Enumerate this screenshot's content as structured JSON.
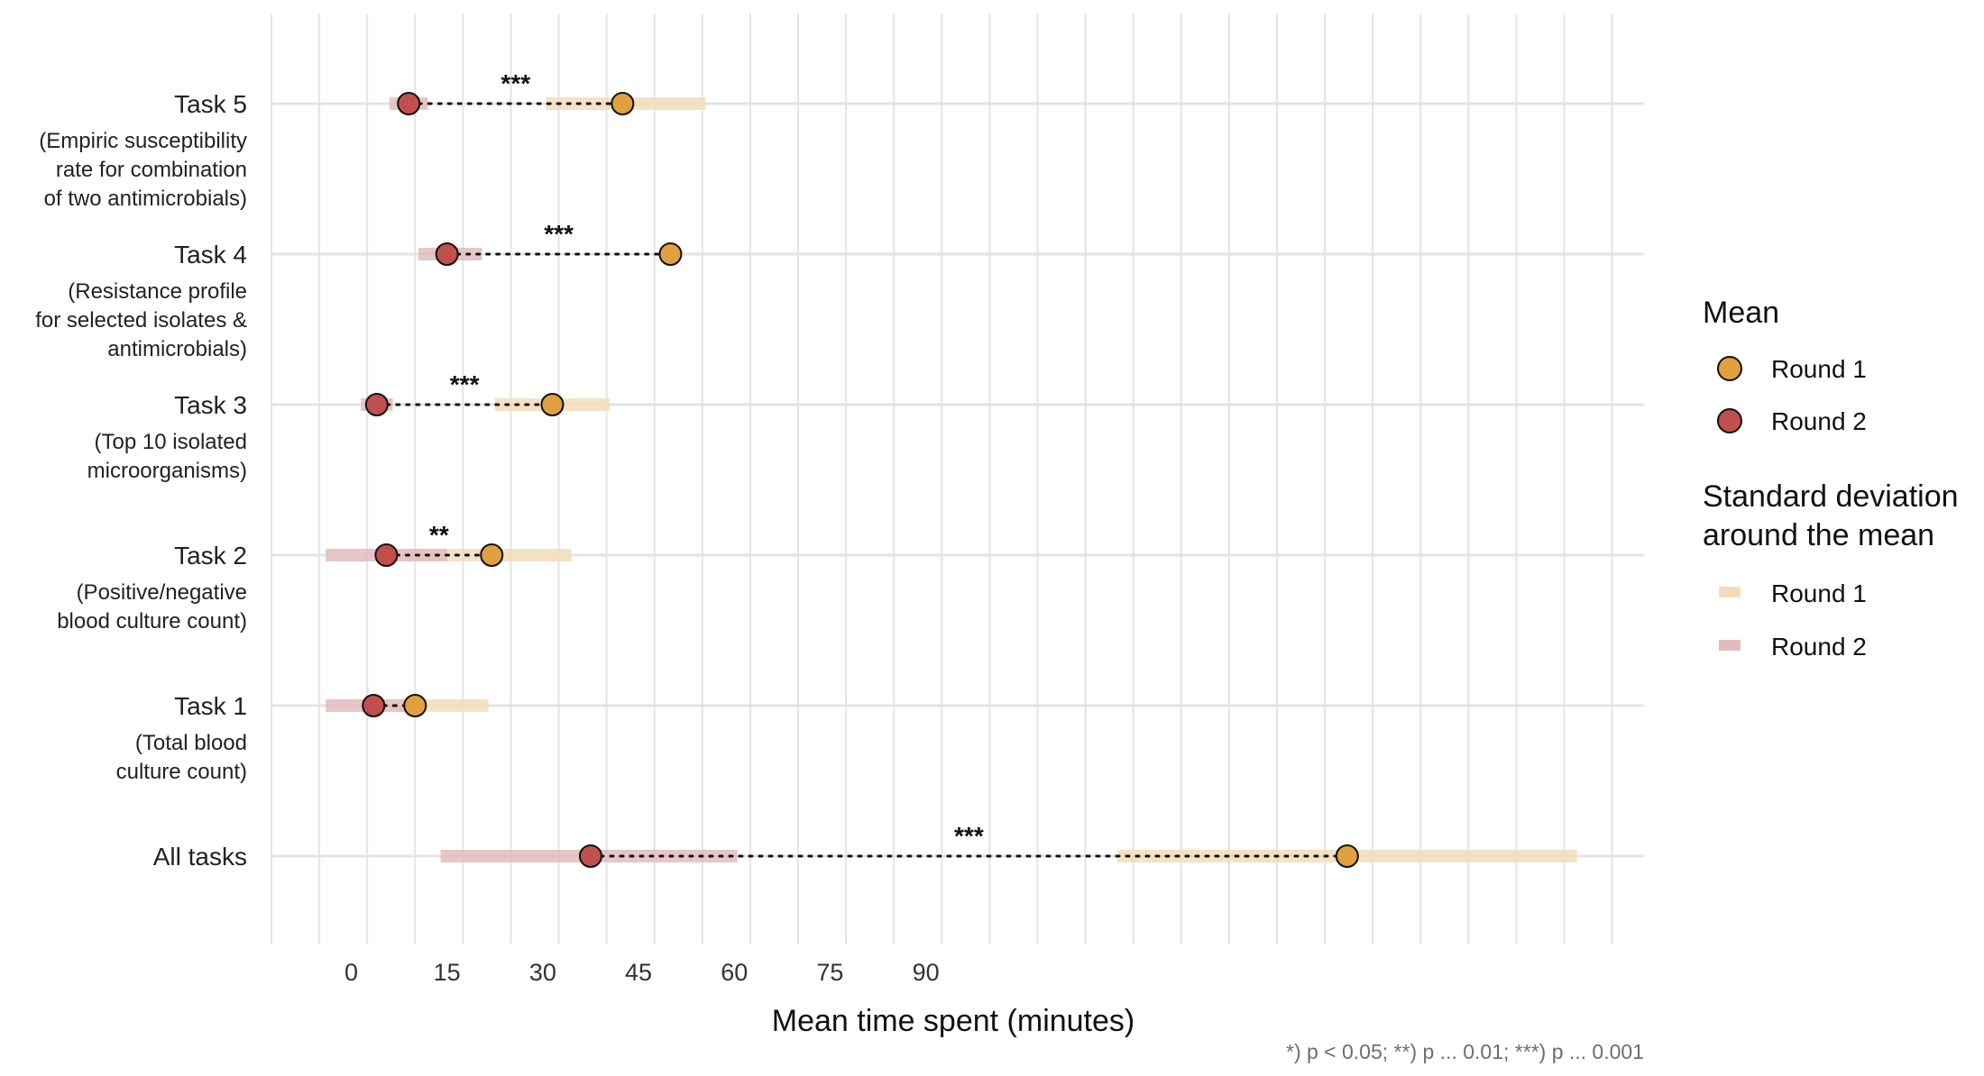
{
  "chart_data": {
    "type": "dot",
    "xlabel": "Mean time spent (minutes)",
    "xlim": [
      -12.5,
      202.5
    ],
    "x_ticks": [
      0,
      15,
      30,
      45,
      60,
      75,
      90
    ],
    "grid": true,
    "legend_placement": "right",
    "caption": "*) p < 0.05; **) p ... 0.01; ***) p ... 0.001",
    "colors": {
      "round1_point": "#E0A040",
      "round2_point": "#C0504D",
      "round1_band": "#F2DDBB",
      "round2_band": "#E2BCBC",
      "grid": "#E4E4E4"
    },
    "legend": {
      "mean_title": "Mean",
      "sd_title_line1": "Standard deviation",
      "sd_title_line2": "around the mean",
      "round1_label": "Round 1",
      "round2_label": "Round 2"
    },
    "categories": [
      {
        "title": "Task 5",
        "desc": [
          "(Empiric susceptibility",
          "rate for combination",
          "of two antimicrobials)"
        ],
        "round1": {
          "mean": 42.5,
          "sd_low": 30.5,
          "sd_high": 55.5
        },
        "round2": {
          "mean": 9,
          "sd_low": 6,
          "sd_high": 12
        },
        "sig": "***"
      },
      {
        "title": "Task 4",
        "desc": [
          "(Resistance profile",
          "for selected isolates &",
          "antimicrobials)"
        ],
        "round1": {
          "mean": 50,
          "sd_low": 50,
          "sd_high": 50
        },
        "round2": {
          "mean": 15,
          "sd_low": 10.5,
          "sd_high": 20.5
        },
        "sig": "***"
      },
      {
        "title": "Task 3",
        "desc": [
          "(Top 10 isolated",
          "microorganisms)"
        ],
        "round1": {
          "mean": 31.5,
          "sd_low": 22.5,
          "sd_high": 40.5
        },
        "round2": {
          "mean": 4,
          "sd_low": 1.5,
          "sd_high": 6.5
        },
        "sig": "***"
      },
      {
        "title": "Task 2",
        "desc": [
          "(Positive/negative",
          "blood culture count)"
        ],
        "round1": {
          "mean": 22,
          "sd_low": 8.5,
          "sd_high": 34.5
        },
        "round2": {
          "mean": 5.5,
          "sd_low": -4,
          "sd_high": 15
        },
        "sig": "**"
      },
      {
        "title": "Task 1",
        "desc": [
          "(Total blood",
          "culture count)"
        ],
        "round1": {
          "mean": 10,
          "sd_low": 7.5,
          "sd_high": 21.5
        },
        "round2": {
          "mean": 3.5,
          "sd_low": -4,
          "sd_high": 11
        },
        "sig": ""
      },
      {
        "title": "All tasks",
        "desc": [],
        "round1": {
          "mean": 156,
          "sd_low": 120,
          "sd_high": 192
        },
        "round2": {
          "mean": 37.5,
          "sd_low": 14,
          "sd_high": 60.5
        },
        "sig": "***"
      }
    ]
  }
}
